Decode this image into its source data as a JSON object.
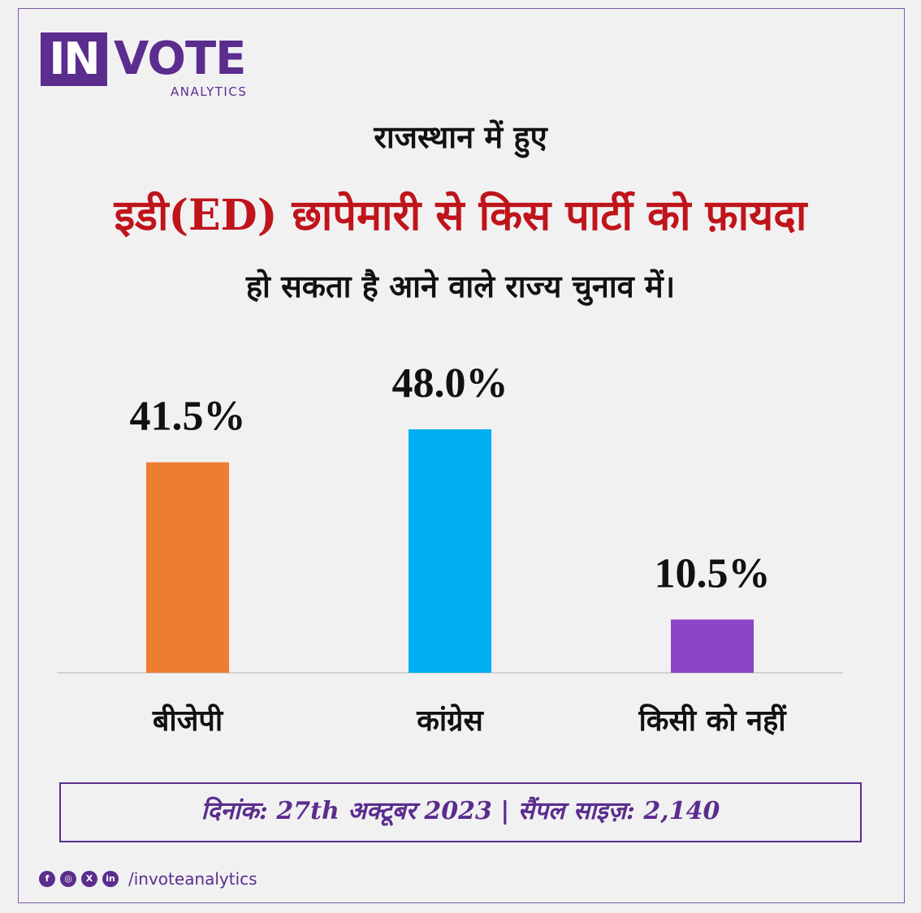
{
  "brand": {
    "logo_in": "IN",
    "logo_vote": "VOTE",
    "logo_sub": "ANALYTICS",
    "color": "#5b2d8e"
  },
  "title": {
    "line1": "राजस्थान में हुए",
    "line2": "इडी(ED) छापेमारी से किस पार्टी को फ़ायदा",
    "line3": "हो सकता है आने वाले राज्य चुनाव में।"
  },
  "chart_data": {
    "type": "bar",
    "categories": [
      "बीजेपी",
      "कांग्रेस",
      "किसी को नहीं"
    ],
    "values": [
      41.5,
      48.0,
      10.5
    ],
    "value_labels": [
      "41.5%",
      "48.0%",
      "10.5%"
    ],
    "colors": [
      "#ed7d31",
      "#00b0f0",
      "#8e44c6"
    ],
    "ylim": [
      0,
      60
    ],
    "xlabel": "",
    "ylabel": "",
    "grid": false,
    "legend": "none"
  },
  "info": {
    "text": "दिनांक: 27th अक्टूबर 2023 | सैंपल साइज़: 2,140"
  },
  "footer": {
    "icons": [
      "facebook-icon",
      "instagram-icon",
      "x-icon",
      "linkedin-icon"
    ],
    "handle": "/invoteanalytics"
  }
}
